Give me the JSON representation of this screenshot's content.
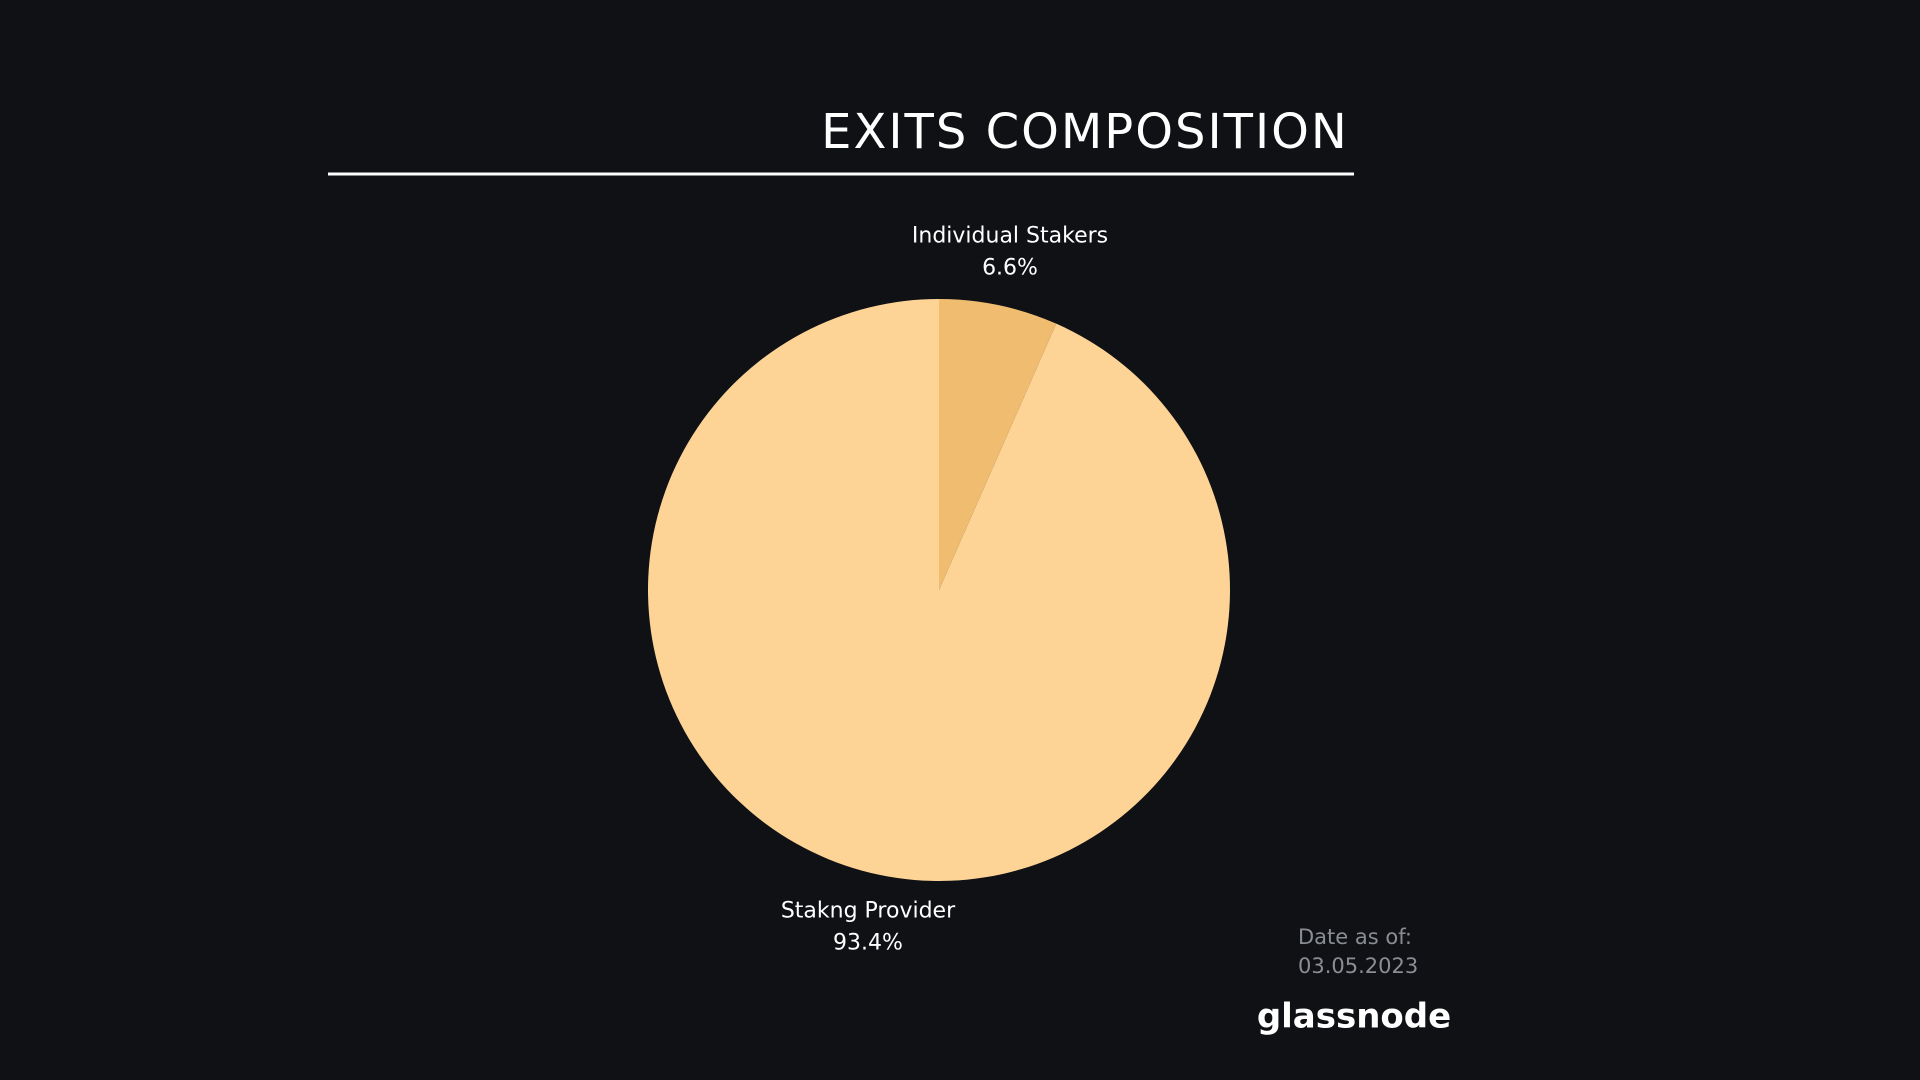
{
  "chart_data": {
    "type": "pie",
    "title": "EXITS COMPOSITION",
    "categories": [
      "Individual Stakers",
      "Stakng Provider"
    ],
    "values": [
      6.6,
      93.4
    ],
    "value_labels": [
      "6.6%",
      "93.4%"
    ],
    "colors": [
      "#f0bd70",
      "#fed496"
    ],
    "date_label": "Date as of:",
    "date": "03.05.2023",
    "source": "glassnode"
  }
}
